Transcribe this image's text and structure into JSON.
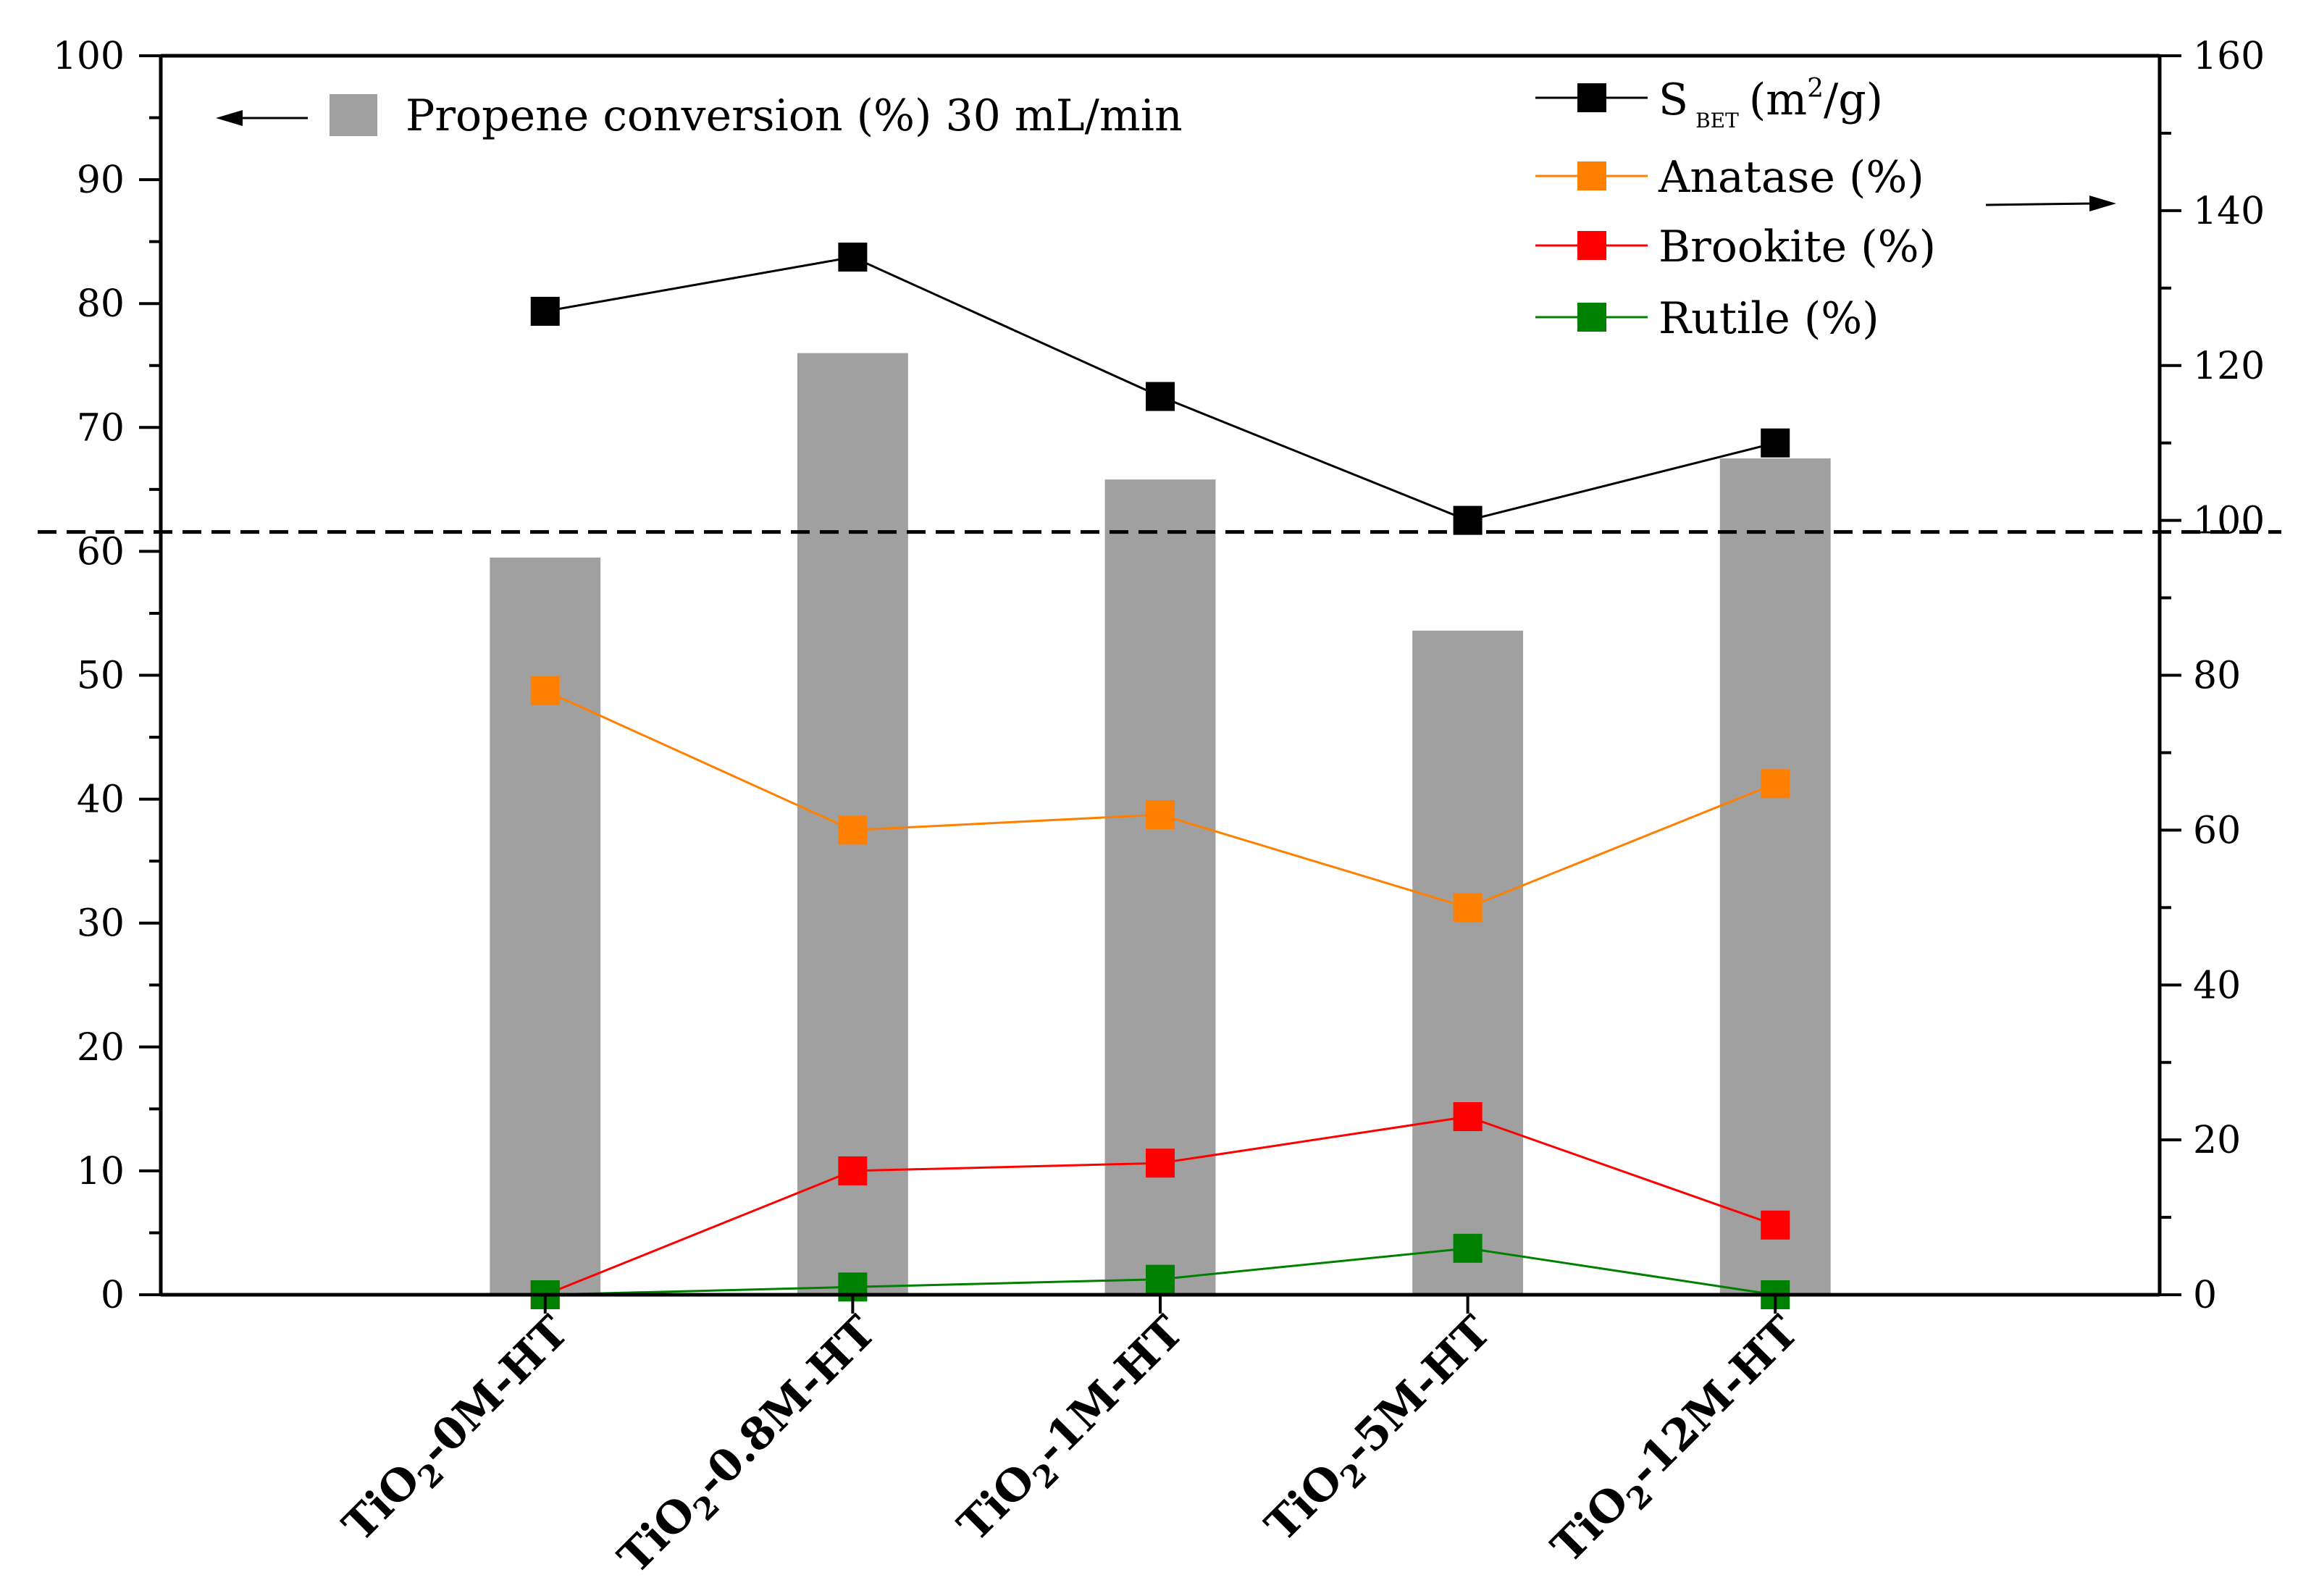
{
  "chart_data": {
    "type": "bar+line",
    "title": "",
    "categories": [
      "TiO₂-0M-HT",
      "TiO₂-0.8M-HT",
      "TiO₂-1M-HT",
      "TiO₂-5M-HT",
      "TiO₂-12M-HT"
    ],
    "category_parts": [
      {
        "base": "TiO",
        "sub": "2",
        "suffix": "-0M-HT"
      },
      {
        "base": "TiO",
        "sub": "2",
        "suffix": "-0.8M-HT"
      },
      {
        "base": "TiO",
        "sub": "2",
        "suffix": "-1M-HT"
      },
      {
        "base": "TiO",
        "sub": "2",
        "suffix": "-5M-HT"
      },
      {
        "base": "TiO",
        "sub": "2",
        "suffix": "-12M-HT"
      }
    ],
    "bars": {
      "name": "Propene conversion (%) 30 mL/min",
      "axis": "left",
      "color": "#a0a0a0",
      "values": [
        59.5,
        76.0,
        65.8,
        53.6,
        67.5
      ]
    },
    "series": [
      {
        "name": "S BET (m2/g)",
        "label_main": "S",
        "label_sub": "BET",
        "label_unit_pre": "(m",
        "label_sup": "2",
        "label_unit_post": "/g)",
        "axis": "right",
        "color": "#000000",
        "values": [
          127,
          134,
          116,
          100,
          110
        ]
      },
      {
        "name": "Anatase (%)",
        "axis": "right",
        "color": "#ff8000",
        "values": [
          78,
          60,
          62,
          50,
          66
        ]
      },
      {
        "name": "Brookite (%)",
        "axis": "right",
        "color": "#ff0000",
        "values": [
          0,
          16,
          17,
          23,
          9
        ]
      },
      {
        "name": "Rutile (%)",
        "axis": "right",
        "color": "#008000",
        "values": [
          0,
          1,
          2,
          6,
          0
        ]
      }
    ],
    "left_axis": {
      "ylim": [
        0,
        100
      ],
      "ticks": [
        "0",
        "10",
        "20",
        "30",
        "40",
        "50",
        "60",
        "70",
        "80",
        "90",
        "100"
      ],
      "label": ""
    },
    "right_axis": {
      "ylim": [
        0,
        160
      ],
      "ticks": [
        "0",
        "20",
        "40",
        "60",
        "80",
        "100",
        "120",
        "140",
        "160"
      ],
      "label": ""
    },
    "reference_line": {
      "axis": "right",
      "value": 98.5,
      "style": "dashed"
    },
    "arrows": {
      "left_series": "Propene conversion (%) 30 mL/min",
      "right_series": "S BET, Anatase, Brookite, Rutile"
    },
    "grid": false,
    "legend_position": "top"
  }
}
